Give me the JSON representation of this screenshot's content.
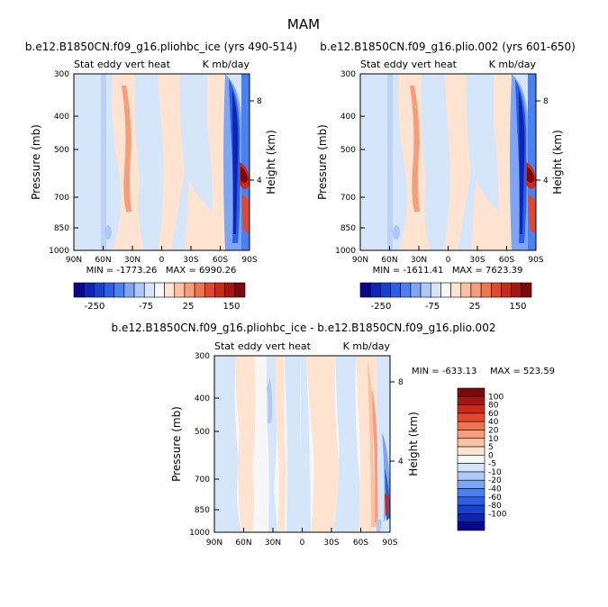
{
  "figure": {
    "title": "MAM",
    "palette_main": [
      "#08088c",
      "#0c25b4",
      "#1640d2",
      "#2b5fe8",
      "#4b80f0",
      "#7ea6f4",
      "#aec9f8",
      "#d6e6fa",
      "#f7f7f7",
      "#fde3d0",
      "#f9c2a4",
      "#f69e7c",
      "#f0744f",
      "#e3482c",
      "#cb2a1a",
      "#a51612",
      "#7a0a0b"
    ],
    "palette_diff": [
      "#08088c",
      "#0c25b4",
      "#1640d2",
      "#2b5fe8",
      "#4b80f0",
      "#7ea6f4",
      "#aec9f8",
      "#d6e6fa",
      "#f7f7f7",
      "#fde3d0",
      "#f9c2a4",
      "#f69e7c",
      "#f0744f",
      "#e3482c",
      "#cb2a1a",
      "#a51612",
      "#7a0a0b"
    ]
  },
  "common": {
    "variable_label": "Stat eddy vert heat",
    "units_label": "K mb/day",
    "y_axis_label": "Pressure (mb)",
    "y2_axis_label": "Height (km)",
    "pressure_ticks": [
      "300",
      "400",
      "500",
      "700",
      "850",
      "1000"
    ],
    "height_ticks": [
      "8",
      "4"
    ],
    "lat_ticks": [
      "90N",
      "60N",
      "30N",
      "0",
      "30S",
      "60S",
      "90S"
    ]
  },
  "chart_data": [
    {
      "type": "heatmap",
      "title": "b.e12.B1850CN.f09_g16.pliohbc_ice (yrs 490-514)",
      "stats": "MIN = -1773.26   MAX = 6990.26",
      "x": "latitude (90N to 90S)",
      "y": "pressure (mb), 300-1000, log scale",
      "colorbar_labels": [
        "-250",
        "-75",
        "25",
        "150"
      ],
      "features": [
        {
          "lat": 38,
          "pressure_range": [
            300,
            800
          ],
          "value_level": "weak positive"
        },
        {
          "lat": -75,
          "pressure_range": [
            300,
            1000
          ],
          "value_level": "strong negative"
        },
        {
          "lat": -88,
          "pressure_range": [
            580,
            950
          ],
          "value_level": "strong positive"
        }
      ]
    },
    {
      "type": "heatmap",
      "title": "b.e12.B1850CN.f09_g16.plio.002 (yrs 601-650)",
      "stats": "MIN = -1611.41   MAX = 7623.39",
      "x": "latitude (90N to 90S)",
      "y": "pressure (mb), 300-1000, log scale",
      "colorbar_labels": [
        "-250",
        "-75",
        "25",
        "150"
      ],
      "features": [
        {
          "lat": 38,
          "pressure_range": [
            300,
            800
          ],
          "value_level": "weak positive"
        },
        {
          "lat": -75,
          "pressure_range": [
            300,
            1000
          ],
          "value_level": "strong negative"
        },
        {
          "lat": -88,
          "pressure_range": [
            580,
            950
          ],
          "value_level": "strong positive"
        }
      ]
    },
    {
      "type": "heatmap",
      "title": "b.e12.B1850CN.f09_g16.pliohbc_ice - b.e12.B1850CN.f09_g16.plio.002",
      "stats_min": "MIN = -633.13",
      "stats_max": "MAX = 523.59",
      "x": "latitude (90N to 90S)",
      "y": "pressure (mb), 300-1000, log scale",
      "colorbar_labels": [
        "100",
        "80",
        "60",
        "40",
        "20",
        "10",
        "5",
        "0",
        "-5",
        "-10",
        "-20",
        "-40",
        "-60",
        "-80",
        "-100"
      ],
      "features": [
        {
          "lat": -70,
          "pressure_range": [
            300,
            1000
          ],
          "value_level": "positive"
        },
        {
          "lat": -88,
          "pressure_range": [
            450,
            1000
          ],
          "value_level": "negative"
        }
      ]
    }
  ]
}
